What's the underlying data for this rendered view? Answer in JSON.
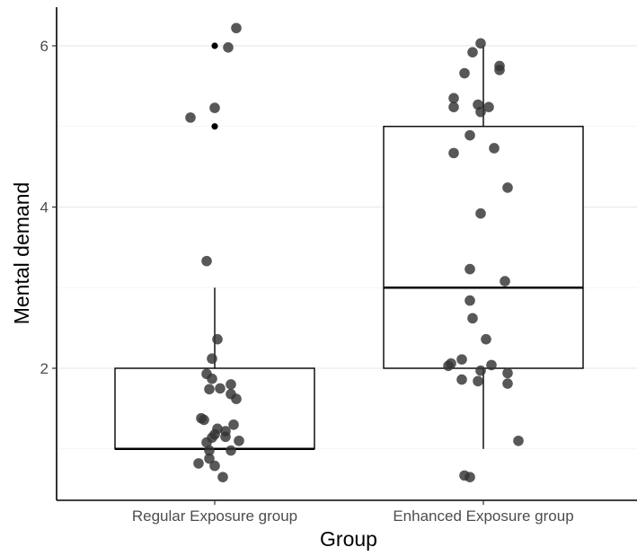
{
  "chart_data": {
    "type": "box",
    "xlabel": "Group",
    "ylabel": "Mental demand",
    "categories": [
      "Regular Exposure group",
      "Enhanced Exposure group"
    ],
    "ylim": [
      0.5,
      6.5
    ],
    "yticks": [
      2,
      4,
      6
    ],
    "minor_gridlines": [
      1,
      3,
      5
    ],
    "grid": "horizontal",
    "colors": {
      "points": "#333333",
      "box_stroke": "#000000",
      "grid": "#ebebeb",
      "axis": "#000000"
    },
    "boxes": [
      {
        "category": "Regular Exposure group",
        "q1": 1,
        "median": 1,
        "q3": 2,
        "whisker_low": 1,
        "whisker_high": 3
      },
      {
        "category": "Enhanced Exposure group",
        "q1": 2,
        "median": 3,
        "q3": 5,
        "whisker_low": 1,
        "whisker_high": 6
      }
    ],
    "outliers": [
      {
        "category": "Regular Exposure group",
        "y": 6
      },
      {
        "category": "Regular Exposure group",
        "y": 5
      }
    ],
    "points": [
      {
        "category": "Regular Exposure group",
        "jitter": 0.08,
        "y": 6.22
      },
      {
        "category": "Regular Exposure group",
        "jitter": 0.05,
        "y": 5.98
      },
      {
        "category": "Regular Exposure group",
        "jitter": -0.09,
        "y": 5.11
      },
      {
        "category": "Regular Exposure group",
        "jitter": 0.0,
        "y": 5.23
      },
      {
        "category": "Regular Exposure group",
        "jitter": -0.03,
        "y": 3.33
      },
      {
        "category": "Regular Exposure group",
        "jitter": 0.01,
        "y": 2.36
      },
      {
        "category": "Regular Exposure group",
        "jitter": -0.01,
        "y": 2.12
      },
      {
        "category": "Regular Exposure group",
        "jitter": -0.03,
        "y": 1.93
      },
      {
        "category": "Regular Exposure group",
        "jitter": -0.01,
        "y": 1.87
      },
      {
        "category": "Regular Exposure group",
        "jitter": 0.06,
        "y": 1.8
      },
      {
        "category": "Regular Exposure group",
        "jitter": -0.02,
        "y": 1.74
      },
      {
        "category": "Regular Exposure group",
        "jitter": 0.02,
        "y": 1.75
      },
      {
        "category": "Regular Exposure group",
        "jitter": 0.06,
        "y": 1.68
      },
      {
        "category": "Regular Exposure group",
        "jitter": 0.08,
        "y": 1.62
      },
      {
        "category": "Regular Exposure group",
        "jitter": -0.05,
        "y": 1.38
      },
      {
        "category": "Regular Exposure group",
        "jitter": -0.04,
        "y": 1.36
      },
      {
        "category": "Regular Exposure group",
        "jitter": 0.07,
        "y": 1.3
      },
      {
        "category": "Regular Exposure group",
        "jitter": 0.01,
        "y": 1.25
      },
      {
        "category": "Regular Exposure group",
        "jitter": 0.04,
        "y": 1.22
      },
      {
        "category": "Regular Exposure group",
        "jitter": 0.0,
        "y": 1.18
      },
      {
        "category": "Regular Exposure group",
        "jitter": 0.04,
        "y": 1.15
      },
      {
        "category": "Regular Exposure group",
        "jitter": -0.01,
        "y": 1.14
      },
      {
        "category": "Regular Exposure group",
        "jitter": 0.09,
        "y": 1.1
      },
      {
        "category": "Regular Exposure group",
        "jitter": -0.03,
        "y": 1.08
      },
      {
        "category": "Regular Exposure group",
        "jitter": -0.02,
        "y": 0.98
      },
      {
        "category": "Regular Exposure group",
        "jitter": 0.06,
        "y": 0.98
      },
      {
        "category": "Regular Exposure group",
        "jitter": -0.02,
        "y": 0.88
      },
      {
        "category": "Regular Exposure group",
        "jitter": -0.06,
        "y": 0.82
      },
      {
        "category": "Regular Exposure group",
        "jitter": 0.0,
        "y": 0.79
      },
      {
        "category": "Regular Exposure group",
        "jitter": 0.03,
        "y": 0.65
      },
      {
        "category": "Enhanced Exposure group",
        "jitter": -0.01,
        "y": 6.03
      },
      {
        "category": "Enhanced Exposure group",
        "jitter": -0.04,
        "y": 5.92
      },
      {
        "category": "Enhanced Exposure group",
        "jitter": 0.06,
        "y": 5.75
      },
      {
        "category": "Enhanced Exposure group",
        "jitter": 0.06,
        "y": 5.7
      },
      {
        "category": "Enhanced Exposure group",
        "jitter": -0.07,
        "y": 5.66
      },
      {
        "category": "Enhanced Exposure group",
        "jitter": -0.11,
        "y": 5.35
      },
      {
        "category": "Enhanced Exposure group",
        "jitter": -0.02,
        "y": 5.27
      },
      {
        "category": "Enhanced Exposure group",
        "jitter": -0.11,
        "y": 5.24
      },
      {
        "category": "Enhanced Exposure group",
        "jitter": 0.02,
        "y": 5.24
      },
      {
        "category": "Enhanced Exposure group",
        "jitter": -0.01,
        "y": 5.18
      },
      {
        "category": "Enhanced Exposure group",
        "jitter": -0.05,
        "y": 4.89
      },
      {
        "category": "Enhanced Exposure group",
        "jitter": 0.04,
        "y": 4.73
      },
      {
        "category": "Enhanced Exposure group",
        "jitter": -0.11,
        "y": 4.67
      },
      {
        "category": "Enhanced Exposure group",
        "jitter": 0.09,
        "y": 4.24
      },
      {
        "category": "Enhanced Exposure group",
        "jitter": -0.01,
        "y": 3.92
      },
      {
        "category": "Enhanced Exposure group",
        "jitter": -0.05,
        "y": 3.23
      },
      {
        "category": "Enhanced Exposure group",
        "jitter": 0.08,
        "y": 3.08
      },
      {
        "category": "Enhanced Exposure group",
        "jitter": -0.05,
        "y": 2.84
      },
      {
        "category": "Enhanced Exposure group",
        "jitter": -0.04,
        "y": 2.62
      },
      {
        "category": "Enhanced Exposure group",
        "jitter": 0.01,
        "y": 2.36
      },
      {
        "category": "Enhanced Exposure group",
        "jitter": -0.08,
        "y": 2.11
      },
      {
        "category": "Enhanced Exposure group",
        "jitter": -0.12,
        "y": 2.06
      },
      {
        "category": "Enhanced Exposure group",
        "jitter": -0.13,
        "y": 2.03
      },
      {
        "category": "Enhanced Exposure group",
        "jitter": 0.03,
        "y": 2.04
      },
      {
        "category": "Enhanced Exposure group",
        "jitter": -0.01,
        "y": 1.97
      },
      {
        "category": "Enhanced Exposure group",
        "jitter": 0.09,
        "y": 1.94
      },
      {
        "category": "Enhanced Exposure group",
        "jitter": -0.08,
        "y": 1.86
      },
      {
        "category": "Enhanced Exposure group",
        "jitter": -0.02,
        "y": 1.84
      },
      {
        "category": "Enhanced Exposure group",
        "jitter": 0.09,
        "y": 1.81
      },
      {
        "category": "Enhanced Exposure group",
        "jitter": 0.13,
        "y": 1.1
      },
      {
        "category": "Enhanced Exposure group",
        "jitter": -0.07,
        "y": 0.67
      },
      {
        "category": "Enhanced Exposure group",
        "jitter": -0.05,
        "y": 0.65
      }
    ]
  }
}
